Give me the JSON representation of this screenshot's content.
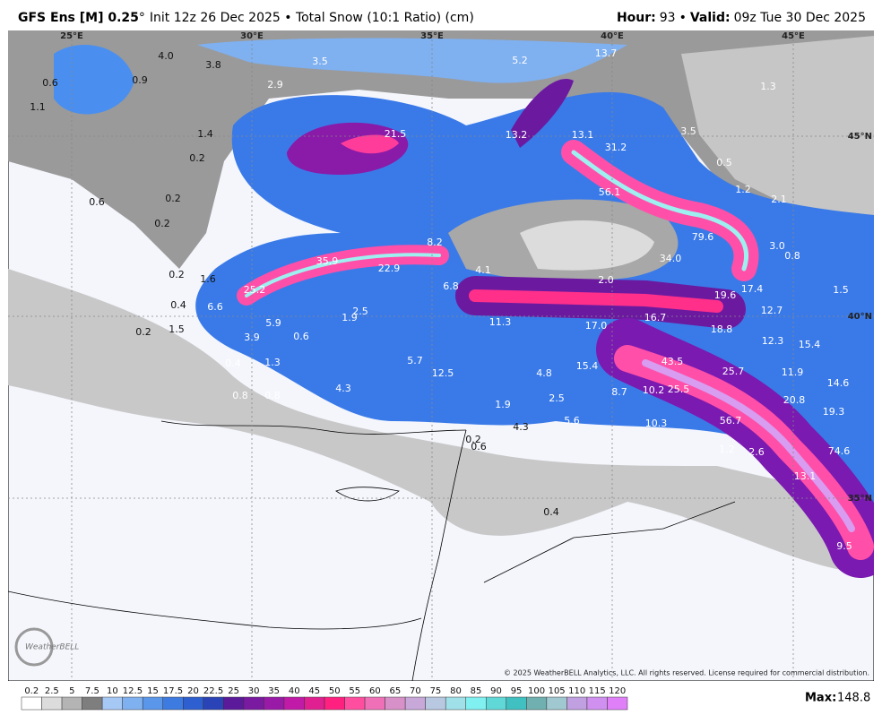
{
  "header": {
    "model": "GFS Ens [M] 0.25",
    "degree": "°",
    "info": "Init 12z 26 Dec 2025 • Total Snow (10:1 Ratio) (cm)",
    "hour_label": "Hour:",
    "hour": "93",
    "sep": "•",
    "valid_label": "Valid:",
    "valid": "09z Tue 30 Dec 2025"
  },
  "map": {
    "lon_labels": [
      "25°E",
      "30°E",
      "35°E",
      "40°E",
      "45°E"
    ],
    "lat_labels": [
      "45°N",
      "40°N",
      "35°N"
    ],
    "snow_labels": [
      "4.0",
      "3.8",
      "3.5",
      "5.2",
      "13.7",
      "0.6",
      "0.9",
      "2.9",
      "1.3",
      "1.1",
      "21.5",
      "13.2",
      "13.1",
      "3.5",
      "1.4",
      "31.2",
      "0.2",
      "0.5",
      "1.2",
      "2.1",
      "56.1",
      "0.2",
      "0.6",
      "0.2",
      "79.6",
      "8.2",
      "3.0",
      "0.8",
      "35.9",
      "22.9",
      "4.1",
      "34.0",
      "0.2",
      "1.6",
      "2.0",
      "25.2",
      "6.8",
      "17.4",
      "1.5",
      "19.6",
      "0.4",
      "6.6",
      "2.5",
      "1.9",
      "12.7",
      "16.7",
      "11.3",
      "5.9",
      "17.0",
      "18.8",
      "0.2",
      "1.5",
      "3.9",
      "0.6",
      "12.3",
      "15.4",
      "43.5",
      "5.7",
      "0.4",
      "1.3",
      "15.4",
      "25.7",
      "12.5",
      "4.8",
      "11.9",
      "14.6",
      "4.3",
      "25.5",
      "10.2",
      "8.7",
      "0.8",
      "0.8",
      "2.5",
      "20.8",
      "1.9",
      "19.3",
      "5.6",
      "10.3",
      "56.7",
      "4.3",
      "0.2",
      "0.6",
      "1.2",
      "2.6",
      "74.6",
      "13.1",
      "0.4",
      "9.5"
    ],
    "copyright": "© 2025 WeatherBELL Analytics, LLC. All rights reserved. License required for commercial distribution.",
    "logo": "WeatherBELL"
  },
  "colorbar": {
    "ticks": [
      0.2,
      2.5,
      5,
      7.5,
      10,
      12.5,
      15,
      17.5,
      20,
      22.5,
      25,
      30,
      35,
      40,
      45,
      50,
      55,
      60,
      65,
      70,
      75,
      80,
      85,
      90,
      95,
      100,
      105,
      110,
      115,
      120
    ],
    "colors": [
      "#ffffff",
      "#dcdcdc",
      "#b4b4b4",
      "#7e7e7e",
      "#a6c8f5",
      "#7fb0f0",
      "#5a96ea",
      "#3d7be0",
      "#2e5fd0",
      "#2a44b8",
      "#5a1a9a",
      "#7a1aa0",
      "#9a1aa8",
      "#c21aa8",
      "#e02090",
      "#ff2080",
      "#ff4ea0",
      "#f070b8",
      "#d890c8",
      "#c8a8d8",
      "#b8c8e0",
      "#a0e0e8",
      "#80f0f0",
      "#60d8d8",
      "#40c0c0",
      "#70b0b0",
      "#a0c8d0",
      "#c0a0e0",
      "#d090f0",
      "#e080f8"
    ]
  },
  "max": {
    "label": "Max:",
    "value": "148.8"
  }
}
